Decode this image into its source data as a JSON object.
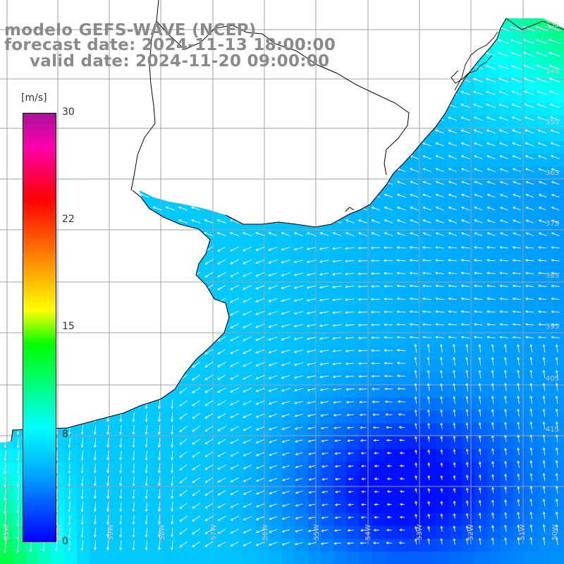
{
  "title": {
    "line1": "modelo GEFS-WAVE (NCEP)",
    "line2": "forecast date: 2024-11-13 18:00:00",
    "line3": "valid date: 2024-11-20 09:00:00"
  },
  "colorbar": {
    "unit": "[m/s]",
    "ticks": [
      "30",
      "22",
      "15",
      "8",
      "0"
    ],
    "tick_values": [
      30,
      22,
      15,
      8,
      0
    ],
    "min": 0,
    "max": 30,
    "colors": [
      "#0000ff",
      "#00aaff",
      "#00ffff",
      "#00ff00",
      "#ffff00",
      "#ff8800",
      "#ff0000",
      "#aa1199"
    ]
  },
  "map": {
    "grid_color": "#a0a0a0",
    "lat_labels": [
      "33S",
      "34S",
      "35S",
      "36S",
      "37S",
      "38S",
      "39S",
      "40S",
      "41S"
    ],
    "lon_labels": [
      "61W",
      "60W",
      "59W",
      "58W",
      "57W",
      "56W",
      "55W",
      "54W",
      "53W",
      "52W",
      "51W",
      "50W"
    ],
    "arrow_color": "#ffffff",
    "coast_color": "#000000"
  }
}
